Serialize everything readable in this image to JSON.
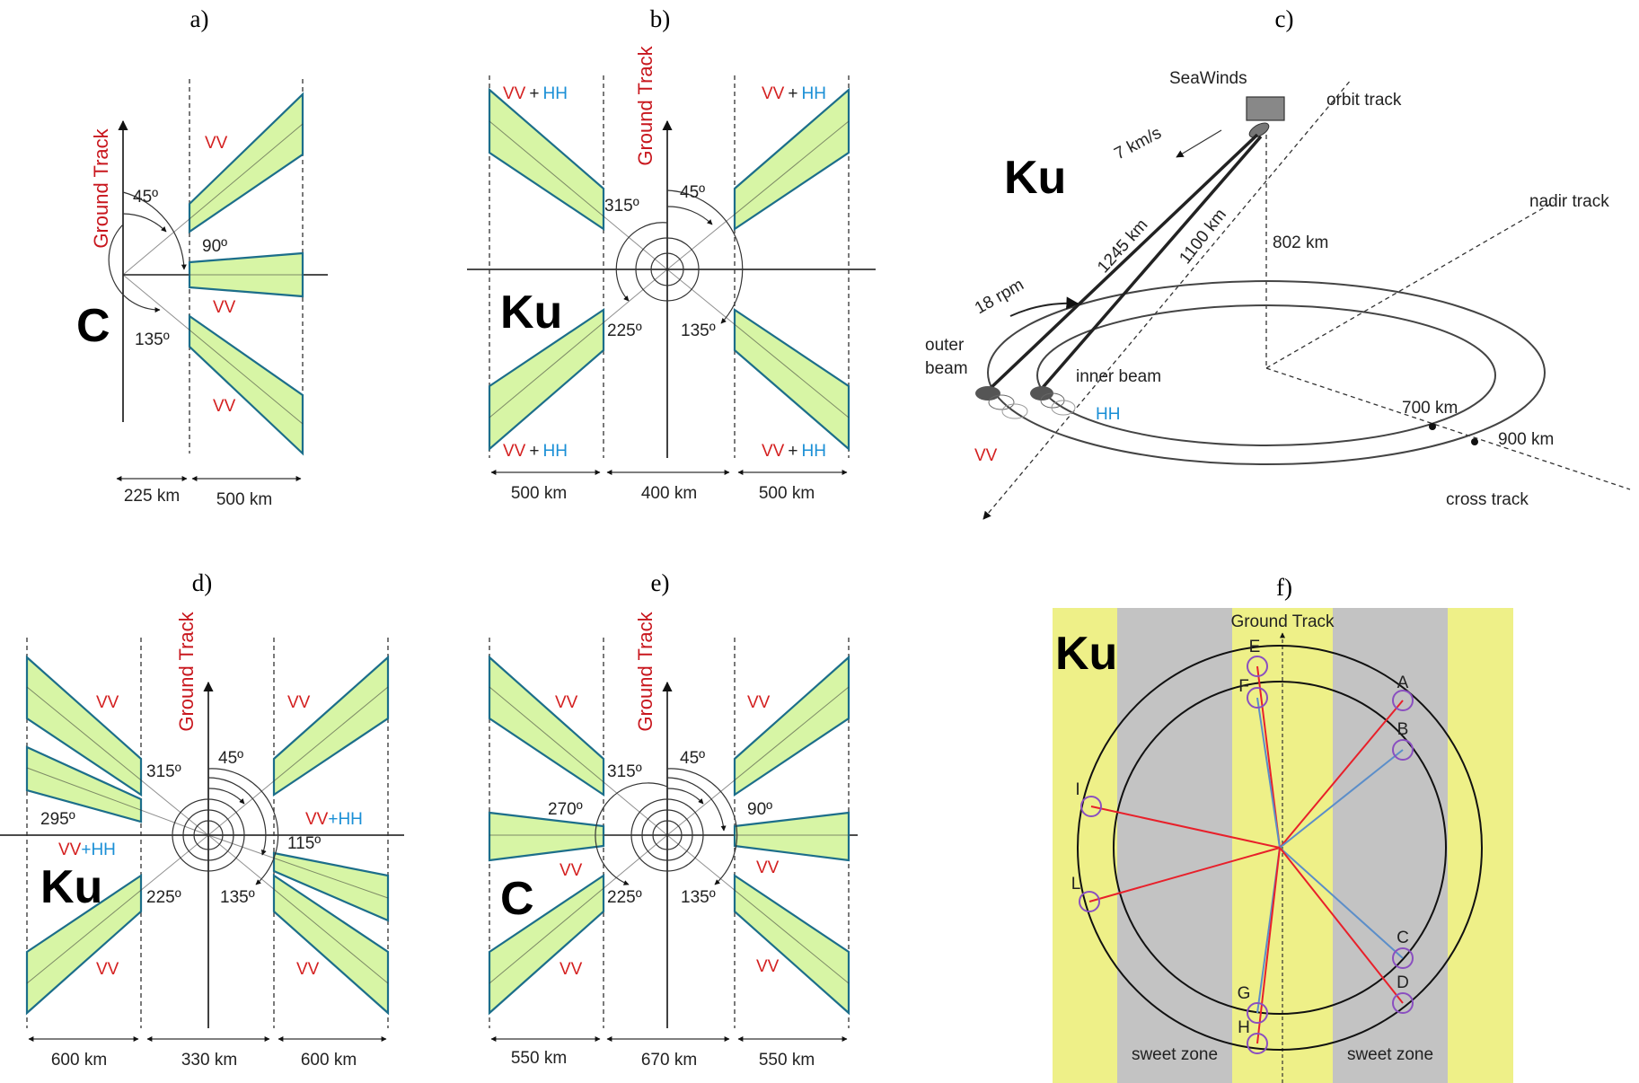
{
  "panels": {
    "a": {
      "label": "a)",
      "band": "C",
      "ground_track": "Ground Track",
      "angles": [
        "45º",
        "90º",
        "135º"
      ],
      "beams": [
        "VV",
        "VV",
        "VV"
      ],
      "widths": [
        "225 km",
        "500 km"
      ]
    },
    "b": {
      "label": "b)",
      "band": "Ku",
      "ground_track": "Ground Track",
      "angles": [
        "315º",
        "45º",
        "225º",
        "135º"
      ],
      "vv": "VV",
      "plus": "+",
      "hh": "HH",
      "widths": [
        "500 km",
        "400 km",
        "500 km"
      ]
    },
    "c": {
      "label": "c)",
      "band": "Ku",
      "title": "SeaWinds",
      "labels": {
        "orbit_track": "orbit track",
        "speed": "7 km/s",
        "nadir_track": "nadir track",
        "outer_range": "1245 km",
        "inner_range": "1100 km",
        "altitude": "802 km",
        "rpm": "18 rpm",
        "outer_beam_1": "outer",
        "outer_beam_2": "beam",
        "inner_beam": "inner beam",
        "hh": "HH",
        "vv": "VV",
        "r700": "700 km",
        "r900": "900 km",
        "cross_track": "cross track"
      }
    },
    "d": {
      "label": "d)",
      "band": "Ku",
      "ground_track": "Ground Track",
      "angles": [
        "45º",
        "315º",
        "295º",
        "115º",
        "225º",
        "135º"
      ],
      "beams": [
        "VV",
        "VV",
        "VV+HH",
        "VV+HH",
        "VV",
        "VV"
      ],
      "widths": [
        "600 km",
        "330 km",
        "600 km"
      ]
    },
    "e": {
      "label": "e)",
      "band": "C",
      "ground_track": "Ground Track",
      "angles": [
        "45º",
        "315º",
        "270º",
        "90º",
        "225º",
        "135º"
      ],
      "beams": [
        "VV",
        "VV",
        "VV",
        "VV",
        "VV",
        "VV"
      ],
      "widths": [
        "550 km",
        "670 km",
        "550 km"
      ]
    },
    "f": {
      "label": "f)",
      "band": "Ku",
      "ground_track": "Ground Track",
      "points": [
        "A",
        "B",
        "C",
        "D",
        "E",
        "F",
        "G",
        "H",
        "I",
        "L"
      ],
      "sweet_zone": "sweet zone",
      "colors": {
        "yellow": "#eef088",
        "gray": "#c3c3c3",
        "red": "#e8202a",
        "blue": "#5b8ec9",
        "circle_marker": "#8a4fc0"
      }
    }
  }
}
